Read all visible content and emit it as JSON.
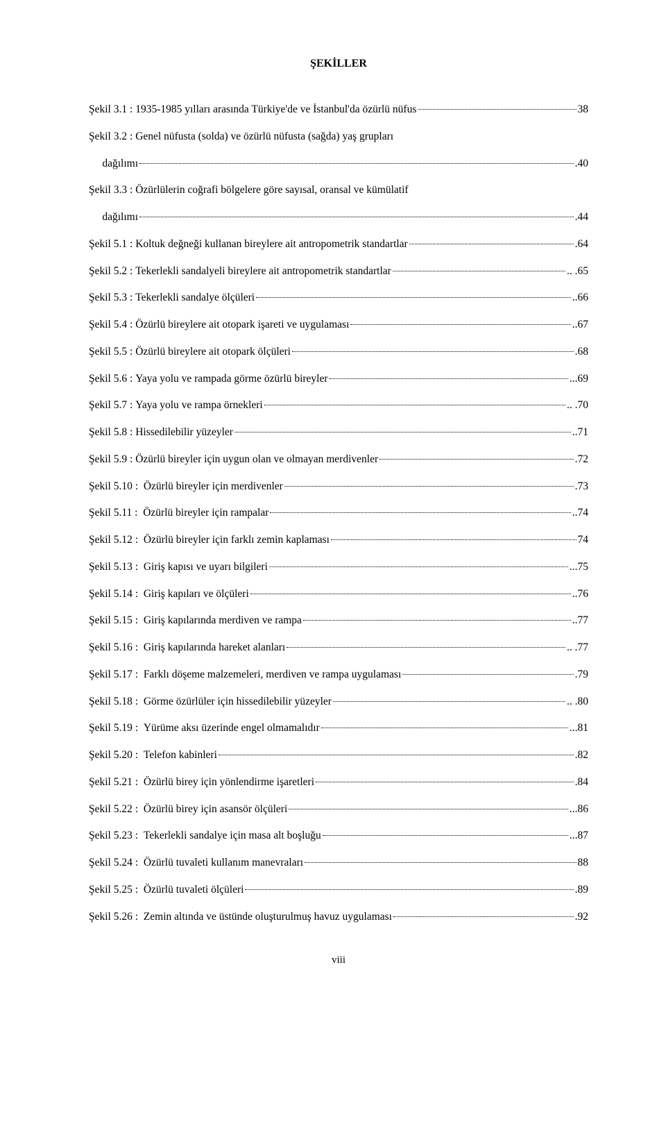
{
  "title": "ŞEKİLLER",
  "page_number_roman": "viii",
  "entries": [
    {
      "label": "Şekil 3.1 ",
      "colon": ": ",
      "desc": "1935-1985 yılları arasında Türkiye'de ve İstanbul'da özürlü nüfus",
      "page": "38"
    },
    {
      "label": "Şekil 3.2 ",
      "colon": ": ",
      "desc": "Genel nüfusta (solda) ve özürlü nüfusta (sağda) yaş grupları",
      "page": ""
    },
    {
      "label": "",
      "colon": "     ",
      "desc": "dağılımı",
      "page": ".40"
    },
    {
      "label": "Şekil 3.3 ",
      "colon": ": ",
      "desc": "Özürlülerin coğrafi bölgelere göre sayısal, oransal ve kümülatif",
      "page": ""
    },
    {
      "label": "",
      "colon": "     ",
      "desc": "dağılımı",
      "page": ".44"
    },
    {
      "label": "Şekil 5.1 ",
      "colon": ": ",
      "desc": "Koltuk değneği kullanan bireylere ait antropometrik standartlar",
      "page": ".64"
    },
    {
      "label": "Şekil 5.2 ",
      "colon": ": ",
      "desc": "Tekerlekli sandalyeli bireylere ait antropometrik standartlar",
      "page": ".. .65"
    },
    {
      "label": "Şekil 5.3 ",
      "colon": ": ",
      "desc": "Tekerlekli sandalye ölçüleri",
      "page": "..66"
    },
    {
      "label": "Şekil 5.4 ",
      "colon": ": ",
      "desc": "Özürlü bireylere ait otopark işareti ve uygulaması",
      "page": "..67"
    },
    {
      "label": "Şekil 5.5 ",
      "colon": ": ",
      "desc": "Özürlü bireylere ait otopark ölçüleri",
      "page": ".68"
    },
    {
      "label": "Şekil 5.6 ",
      "colon": ": ",
      "desc": "Yaya yolu ve rampada görme özürlü bireyler",
      "page": "...69"
    },
    {
      "label": "Şekil 5.7 ",
      "colon": ": ",
      "desc": "Yaya yolu ve rampa örnekleri",
      "page": ".. .70"
    },
    {
      "label": "Şekil 5.8 ",
      "colon": ": ",
      "desc": "Hissedilebilir yüzeyler",
      "page": "..71"
    },
    {
      "label": "Şekil 5.9 ",
      "colon": ": ",
      "desc": "Özürlü bireyler için uygun olan ve olmayan merdivenler",
      "page": ".72"
    },
    {
      "label": "Şekil 5.10 ",
      "colon": ":  ",
      "desc": "Özürlü bireyler için merdivenler",
      "page": ".73"
    },
    {
      "label": "Şekil 5.11 ",
      "colon": ":  ",
      "desc": "Özürlü bireyler için rampalar",
      "page": "..74"
    },
    {
      "label": "Şekil 5.12 ",
      "colon": ":  ",
      "desc": "Özürlü bireyler için farklı zemin kaplaması",
      "page": "74"
    },
    {
      "label": "Şekil 5.13 ",
      "colon": ":  ",
      "desc": "Giriş kapısı ve uyarı bilgileri",
      "page": "...75"
    },
    {
      "label": "Şekil 5.14 ",
      "colon": ":  ",
      "desc": "Giriş kapıları ve ölçüleri",
      "page": "..76"
    },
    {
      "label": "Şekil 5.15 ",
      "colon": ":  ",
      "desc": "Giriş kapılarında merdiven ve rampa",
      "page": "..77"
    },
    {
      "label": "Şekil 5.16 ",
      "colon": ":  ",
      "desc": "Giriş kapılarında hareket alanları",
      "page": ".. .77"
    },
    {
      "label": "Şekil 5.17 ",
      "colon": ":  ",
      "desc": "Farklı döşeme malzemeleri, merdiven ve rampa uygulaması",
      "page": ".79"
    },
    {
      "label": "Şekil 5.18 ",
      "colon": ":  ",
      "desc": "Görme özürlüler için hissedilebilir yüzeyler",
      "page": ".. .80"
    },
    {
      "label": "Şekil 5.19 ",
      "colon": ":  ",
      "desc": "Yürüme aksı üzerinde engel olmamalıdır",
      "page": "...81"
    },
    {
      "label": "Şekil 5.20 ",
      "colon": ":  ",
      "desc": "Telefon kabinleri",
      "page": ".82"
    },
    {
      "label": "Şekil 5.21 ",
      "colon": ":  ",
      "desc": "Özürlü birey için yönlendirme işaretleri",
      "page": ".84"
    },
    {
      "label": "Şekil 5.22 ",
      "colon": ":  ",
      "desc": "Özürlü birey için asansör ölçüleri",
      "page": "...86"
    },
    {
      "label": "Şekil 5.23 ",
      "colon": ":  ",
      "desc": "Tekerlekli sandalye için masa alt boşluğu",
      "page": "...87"
    },
    {
      "label": "Şekil 5.24 ",
      "colon": ":  ",
      "desc": "Özürlü tuvaleti kullanım manevraları",
      "page": "88"
    },
    {
      "label": "Şekil 5.25 ",
      "colon": ":  ",
      "desc": "Özürlü tuvaleti ölçüleri",
      "page": ".89"
    },
    {
      "label": "Şekil 5.26 ",
      "colon": ":  ",
      "desc": "Zemin altında ve üstünde oluşturulmuş havuz uygulaması",
      "page": ".92"
    }
  ]
}
